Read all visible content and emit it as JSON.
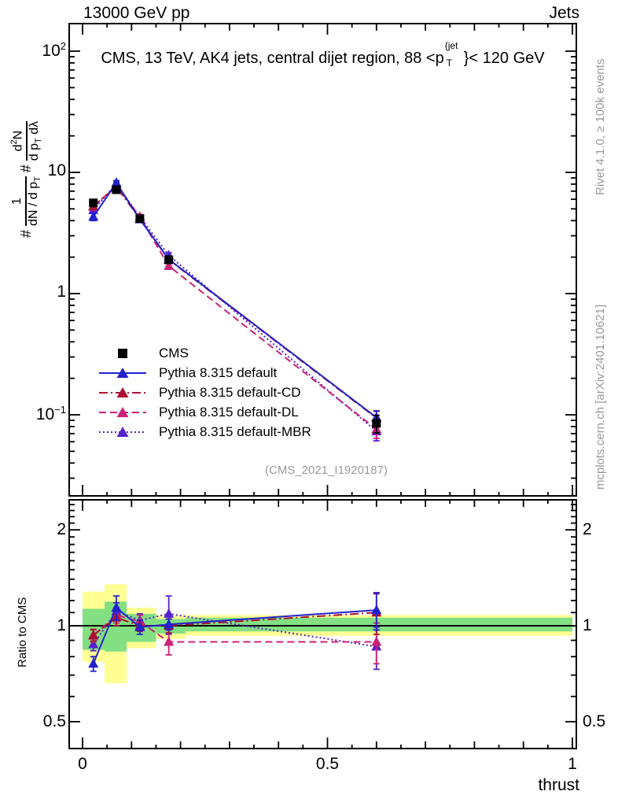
{
  "header": {
    "left": "13000 GeV pp",
    "right": "Jets"
  },
  "title": {
    "prefix": "CMS, 13 TeV, AK4 jets, central dijet region, 88 <p",
    "sup": "{jet",
    "sub": "T",
    "suffix": "}< 120 GeV"
  },
  "watermark": "(CMS_2021_I1920187)",
  "side_notes": {
    "rivet": "Rivet 4.1.0, ≥ 100k events",
    "mcplots": "mcplots.cern.ch [arXiv:2401.10621]"
  },
  "ylabel": {
    "hash1": "#",
    "frac1_num": "1",
    "frac1_den_main": "dN / d p",
    "frac1_den_sub": "T",
    "hash2": "#",
    "frac2_num_main": "d",
    "frac2_num_sup": "2",
    "frac2_num_tail": "N",
    "frac2_den_main": "d p",
    "frac2_den_sub": "T",
    "frac2_den_tail": " dλ"
  },
  "ratio_ylabel": "Ratio to CMS",
  "xlabel": "thrust",
  "legend": {
    "items": [
      {
        "label": "CMS",
        "marker": "square",
        "line": "none",
        "color": "#000000"
      },
      {
        "label": "Pythia 8.315 default",
        "marker": "triangle",
        "line": "solid",
        "color": "#2222cc"
      },
      {
        "label": "Pythia 8.315 default-CD",
        "marker": "triangle",
        "line": "dashdot",
        "color": "#aa1133"
      },
      {
        "label": "Pythia 8.315 default-DL",
        "marker": "triangle",
        "line": "dashed",
        "color": "#cc2277"
      },
      {
        "label": "Pythia 8.315 default-MBR",
        "marker": "triangle",
        "line": "dotted",
        "color": "#5522cc"
      }
    ]
  },
  "axes": {
    "x_ticks": [
      {
        "v": 0,
        "label": "0"
      },
      {
        "v": 0.5,
        "label": "0.5"
      },
      {
        "v": 1,
        "label": "1"
      }
    ],
    "main_y_ticks": [
      {
        "v": 100,
        "base": "10",
        "exp": "2"
      },
      {
        "v": 10,
        "base": "10",
        "exp": ""
      },
      {
        "v": 1,
        "base": "1",
        "exp": ""
      },
      {
        "v": 0.1,
        "base": "10",
        "exp": "−1"
      }
    ],
    "ratio_y_ticks": [
      {
        "v": 2,
        "label": "2"
      },
      {
        "v": 1,
        "label": "1"
      },
      {
        "v": 0.5,
        "label": "0.5"
      }
    ]
  },
  "chart_data": {
    "type": "line",
    "title": "CMS, 13 TeV, AK4 jets, central dijet region, 88 < pT{jet} < 120 GeV",
    "xlabel": "thrust",
    "x": [
      0.022,
      0.069,
      0.117,
      0.176,
      0.6
    ],
    "bin_edges": [
      0.0,
      0.045,
      0.09,
      0.15,
      0.21,
      1.0
    ],
    "xlim": [
      -0.027,
      1.008
    ],
    "band_colors": {
      "green": "#82df82",
      "yellow": "#ffff94"
    },
    "main": {
      "yscale": "log",
      "ylim": [
        0.021,
        170
      ],
      "series": [
        {
          "name": "CMS",
          "color": "#000000",
          "marker": "square",
          "line": "none",
          "values": [
            5.6,
            7.2,
            4.15,
            1.9,
            0.085
          ],
          "yerr": [
            0.3,
            0.35,
            0.2,
            0.12,
            0.014
          ]
        },
        {
          "name": "Pythia 8.315 default",
          "color": "#2222cc",
          "marker": "triangle",
          "line": "solid",
          "values": [
            4.3,
            8.2,
            4.1,
            1.92,
            0.095
          ],
          "yerr": [
            0.3,
            0.35,
            0.2,
            0.1,
            0.013
          ]
        },
        {
          "name": "Pythia 8.315 default-CD",
          "color": "#aa1133",
          "marker": "triangle",
          "line": "dashdot",
          "values": [
            5.25,
            7.6,
            4.15,
            1.9,
            0.094
          ],
          "yerr": [
            0.25,
            0.3,
            0.2,
            0.1,
            0.013
          ]
        },
        {
          "name": "Pythia 8.315 default-DL",
          "color": "#cc2277",
          "marker": "triangle",
          "line": "dashed",
          "values": [
            5.2,
            7.8,
            4.3,
            1.69,
            0.076
          ],
          "yerr": [
            0.25,
            0.3,
            0.2,
            0.1,
            0.012
          ]
        },
        {
          "name": "Pythia 8.315 default-MBR",
          "color": "#5522cc",
          "marker": "triangle",
          "line": "dotted",
          "values": [
            4.9,
            8.0,
            4.3,
            2.07,
            0.073
          ],
          "yerr": [
            0.25,
            0.3,
            0.2,
            0.1,
            0.012
          ]
        }
      ]
    },
    "ratio": {
      "yscale": "log",
      "ylim": [
        0.41,
        2.48
      ],
      "ref": 1,
      "bands": [
        {
          "x0": 0.0,
          "x1": 0.045,
          "green": [
            0.84,
            1.13
          ],
          "yellow": [
            0.77,
            1.28
          ]
        },
        {
          "x0": 0.045,
          "x1": 0.09,
          "green": [
            0.83,
            1.19
          ],
          "yellow": [
            0.66,
            1.35
          ]
        },
        {
          "x0": 0.09,
          "x1": 0.15,
          "green": [
            0.89,
            1.09
          ],
          "yellow": [
            0.85,
            1.14
          ]
        },
        {
          "x0": 0.15,
          "x1": 0.21,
          "green": [
            0.945,
            1.05
          ],
          "yellow": [
            0.91,
            1.08
          ]
        },
        {
          "x0": 0.21,
          "x1": 1.0,
          "green": [
            0.96,
            1.06
          ],
          "yellow": [
            0.93,
            1.08
          ]
        }
      ],
      "series": [
        {
          "name": "Pythia 8.315 default",
          "color": "#2222cc",
          "marker": "triangle",
          "line": "solid",
          "values": [
            0.76,
            1.14,
            0.99,
            1.01,
            1.12
          ],
          "yerr": [
            0.04,
            0.1,
            0.05,
            0.04,
            0.15
          ]
        },
        {
          "name": "Pythia 8.315 default-CD",
          "color": "#aa1133",
          "marker": "triangle",
          "line": "dashdot",
          "values": [
            0.935,
            1.06,
            1.0,
            1.0,
            1.1
          ],
          "yerr": [
            0.04,
            0.06,
            0.04,
            0.05,
            0.16
          ]
        },
        {
          "name": "Pythia 8.315 default-DL",
          "color": "#cc2277",
          "marker": "triangle",
          "line": "dashed",
          "values": [
            0.93,
            1.08,
            1.03,
            0.89,
            0.89
          ],
          "yerr": [
            0.04,
            0.06,
            0.05,
            0.08,
            0.13
          ]
        },
        {
          "name": "Pythia 8.315 default-MBR",
          "color": "#5522cc",
          "marker": "triangle",
          "line": "dotted",
          "values": [
            0.875,
            1.11,
            1.04,
            1.09,
            0.86
          ],
          "yerr": [
            0.04,
            0.07,
            0.05,
            0.15,
            0.13
          ]
        }
      ]
    }
  }
}
